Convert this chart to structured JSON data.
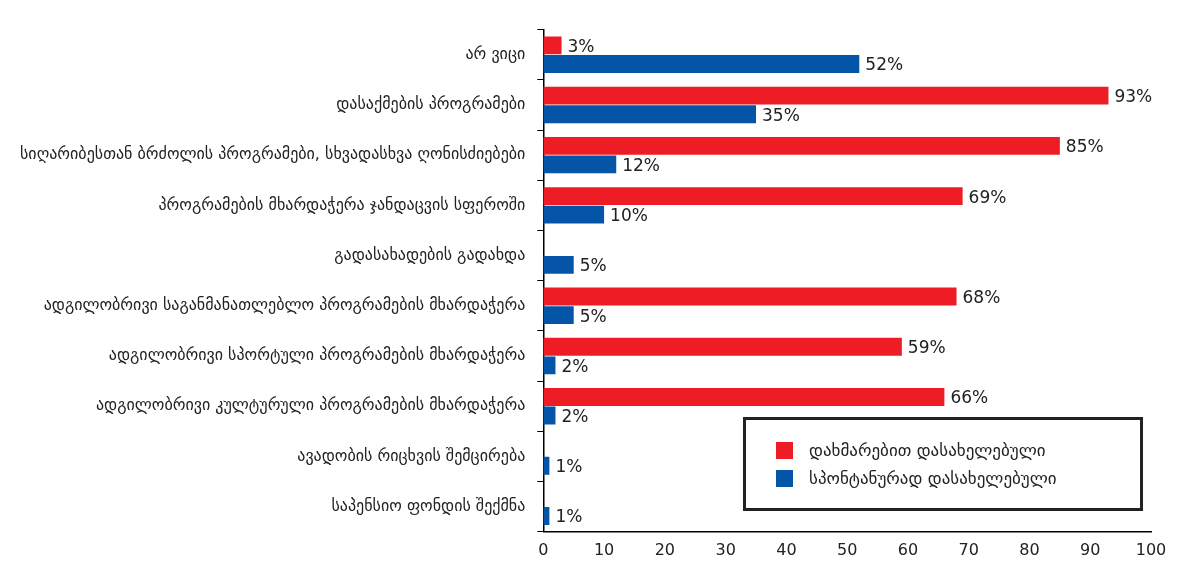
{
  "chart_data": {
    "type": "bar",
    "orientation": "horizontal",
    "categories": [
      "არ ვიცი",
      "დასაქმების პროგრამები",
      "სიღარიბესთან ბრძოლის პროგრამები, სხვადასხვა ღონისძიებები",
      "პროგრამების მხარდაჭერა ჯანდაცვის სფეროში",
      "გადასახადების გადახდა",
      "ადგილობრივი საგანმანათლებლო პროგრამების მხარდაჭერა",
      "ადგილობრივი სპორტული პროგრამების მხარდაჭერა",
      "ადგილობრივი კულტურული პროგრამების მხარდაჭერა",
      "ავადობის რიცხვის შემცირება",
      "საპენსიო ფონდის შექმნა"
    ],
    "series": [
      {
        "name": "დახმარებით დასახელებული",
        "color": "#ee1c25",
        "values": [
          3,
          93,
          85,
          69,
          null,
          68,
          59,
          66,
          null,
          null
        ],
        "value_labels": [
          "3%",
          "93%",
          "85%",
          "69%",
          null,
          "68%",
          "59%",
          "66%",
          null,
          null
        ]
      },
      {
        "name": "სპონტანურად დასახელებული",
        "color": "#0455a8",
        "values": [
          52,
          35,
          12,
          10,
          5,
          5,
          2,
          2,
          1,
          1
        ],
        "value_labels": [
          "52%",
          "35%",
          "12%",
          "10%",
          "5%",
          "5%",
          "2%",
          "2%",
          "1%",
          "1%"
        ]
      }
    ],
    "xlim": [
      0,
      100
    ],
    "xticks": [
      0,
      10,
      20,
      30,
      40,
      50,
      60,
      70,
      80,
      90,
      100
    ],
    "grid": false,
    "legend": "bottom right"
  }
}
